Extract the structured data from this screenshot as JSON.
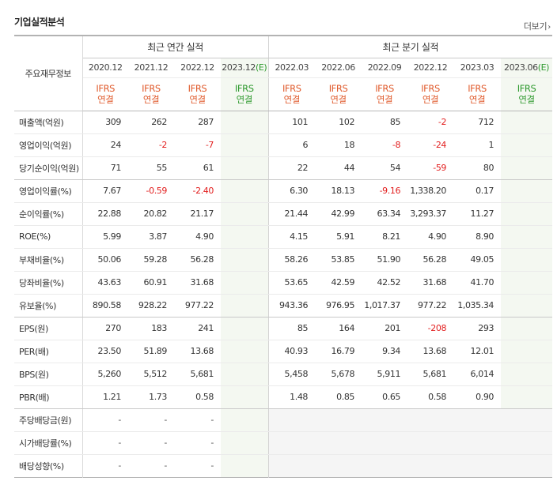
{
  "section_title": "기업실적분석",
  "more_link": "더보기",
  "row_header_label": "주요재무정보",
  "annual_group": "최근 연간 실적",
  "quarter_group": "최근 분기 실적",
  "annual_periods": [
    {
      "label": "2020.12",
      "std": "IFRS",
      "basis": "연결"
    },
    {
      "label": "2021.12",
      "std": "IFRS",
      "basis": "연결"
    },
    {
      "label": "2022.12",
      "std": "IFRS",
      "basis": "연결"
    },
    {
      "label": "2023.12",
      "est": "(E)",
      "std": "IFRS",
      "basis": "연결"
    }
  ],
  "quarter_periods": [
    {
      "label": "2022.03",
      "std": "IFRS",
      "basis": "연결"
    },
    {
      "label": "2022.06",
      "std": "IFRS",
      "basis": "연결"
    },
    {
      "label": "2022.09",
      "std": "IFRS",
      "basis": "연결"
    },
    {
      "label": "2022.12",
      "std": "IFRS",
      "basis": "연결"
    },
    {
      "label": "2023.03",
      "std": "IFRS",
      "basis": "연결"
    },
    {
      "label": "2023.06",
      "est": "(E)",
      "std": "IFRS",
      "basis": "연결"
    }
  ],
  "rows": [
    {
      "label": "매출액(억원)",
      "annual": [
        "309",
        "262",
        "287",
        ""
      ],
      "quarter": [
        "101",
        "102",
        "85",
        "-2",
        "712",
        ""
      ]
    },
    {
      "label": "영업이익(억원)",
      "annual": [
        "24",
        "-2",
        "-7",
        ""
      ],
      "quarter": [
        "6",
        "18",
        "-8",
        "-24",
        "1",
        ""
      ]
    },
    {
      "label": "당기순이익(억원)",
      "annual": [
        "71",
        "55",
        "61",
        ""
      ],
      "quarter": [
        "22",
        "44",
        "54",
        "-59",
        "80",
        ""
      ]
    },
    {
      "label": "영업이익률(%)",
      "annual": [
        "7.67",
        "-0.59",
        "-2.40",
        ""
      ],
      "quarter": [
        "6.30",
        "18.13",
        "-9.16",
        "1,338.20",
        "0.17",
        ""
      ]
    },
    {
      "label": "순이익률(%)",
      "annual": [
        "22.88",
        "20.82",
        "21.17",
        ""
      ],
      "quarter": [
        "21.44",
        "42.99",
        "63.34",
        "3,293.37",
        "11.27",
        ""
      ]
    },
    {
      "label": "ROE(%)",
      "annual": [
        "5.99",
        "3.87",
        "4.90",
        ""
      ],
      "quarter": [
        "4.15",
        "5.91",
        "8.21",
        "4.90",
        "8.90",
        ""
      ]
    },
    {
      "label": "부채비율(%)",
      "annual": [
        "50.06",
        "59.28",
        "56.28",
        ""
      ],
      "quarter": [
        "58.26",
        "53.85",
        "51.90",
        "56.28",
        "49.05",
        ""
      ]
    },
    {
      "label": "당좌비율(%)",
      "annual": [
        "43.63",
        "60.91",
        "31.68",
        ""
      ],
      "quarter": [
        "53.65",
        "42.59",
        "42.52",
        "31.68",
        "41.70",
        ""
      ]
    },
    {
      "label": "유보율(%)",
      "annual": [
        "890.58",
        "928.22",
        "977.22",
        ""
      ],
      "quarter": [
        "943.36",
        "976.95",
        "1,017.37",
        "977.22",
        "1,035.34",
        ""
      ]
    },
    {
      "label": "EPS(원)",
      "annual": [
        "270",
        "183",
        "241",
        ""
      ],
      "quarter": [
        "85",
        "164",
        "201",
        "-208",
        "293",
        ""
      ]
    },
    {
      "label": "PER(배)",
      "annual": [
        "23.50",
        "51.89",
        "13.68",
        ""
      ],
      "quarter": [
        "40.93",
        "16.79",
        "9.34",
        "13.68",
        "12.01",
        ""
      ]
    },
    {
      "label": "BPS(원)",
      "annual": [
        "5,260",
        "5,512",
        "5,681",
        ""
      ],
      "quarter": [
        "5,458",
        "5,678",
        "5,911",
        "5,681",
        "6,014",
        ""
      ]
    },
    {
      "label": "PBR(배)",
      "annual": [
        "1.21",
        "1.73",
        "0.58",
        ""
      ],
      "quarter": [
        "1.48",
        "0.85",
        "0.65",
        "0.58",
        "0.90",
        ""
      ]
    },
    {
      "label": "주당배당금(원)",
      "annual": [
        "-",
        "-",
        "-",
        ""
      ],
      "quarter": [
        "",
        "",
        "",
        "",
        "",
        ""
      ]
    },
    {
      "label": "시가배당률(%)",
      "annual": [
        "-",
        "-",
        "-",
        ""
      ],
      "quarter": [
        "",
        "",
        "",
        "",
        "",
        ""
      ]
    },
    {
      "label": "배당성향(%)",
      "annual": [
        "-",
        "-",
        "-",
        ""
      ],
      "quarter": [
        "",
        "",
        "",
        "",
        "",
        ""
      ]
    }
  ]
}
